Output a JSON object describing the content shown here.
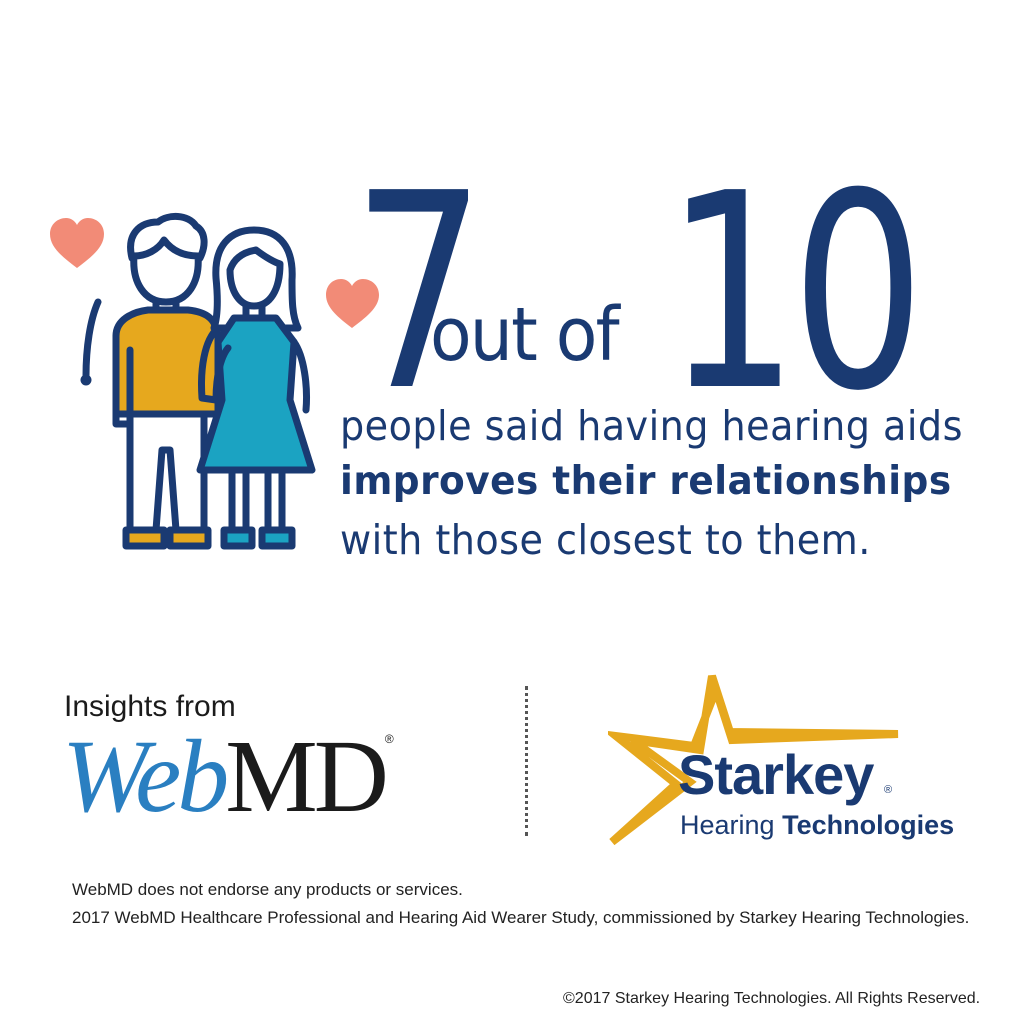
{
  "stat": {
    "number": "7",
    "connector": "out of",
    "total": "10"
  },
  "message": {
    "line1": "people said having hearing aids",
    "line2": "improves their relationships",
    "line3": "with those closest to them."
  },
  "webmd": {
    "intro": "Insights from",
    "logo_web": "Web",
    "logo_md": "MD",
    "registered": "®"
  },
  "starkey": {
    "name": "Starkey",
    "registered": "®",
    "tagline_regular": "Hearing",
    "tagline_bold": "Technologies"
  },
  "footnotes": {
    "disclaimer": "WebMD does not endorse any products or services.",
    "study": "2017 WebMD Healthcare Professional and Hearing Aid Wearer Study, commissioned by Starkey Hearing Technologies."
  },
  "copyright": "©2017 Starkey Hearing Technologies. All Rights Reserved.",
  "colors": {
    "navy": "#1a3a72",
    "heart": "#f28b77",
    "shirt": "#e6a81e",
    "dress": "#1ba3c2",
    "webmd_blue": "#2a7fc1",
    "star_gold": "#e6a81e"
  },
  "icons": {
    "illustration": "couple-illustration",
    "hearts": "heart-icon",
    "starkey_star": "star-icon"
  }
}
